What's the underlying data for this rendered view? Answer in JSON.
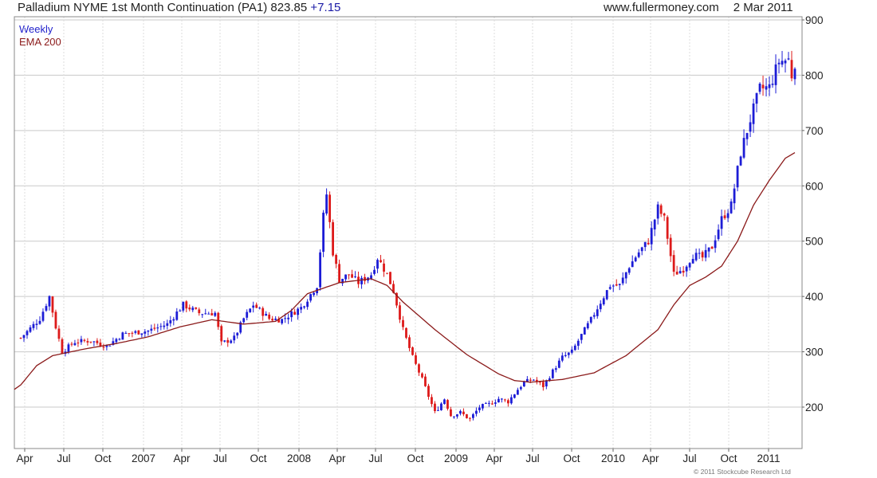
{
  "header": {
    "title": "Palladium NYME 1st Month Continuation (PA1) 823.85",
    "change": "+7.15",
    "site": "www.fullermoney.com",
    "date": "2 Mar 2011"
  },
  "legend": {
    "series1": "Weekly",
    "series2": "EMA 200"
  },
  "copyright": "© 2011 Stockcube Research Ltd",
  "colors": {
    "up": "#1c1cd6",
    "down": "#dd1a1a",
    "ema": "#8b1a1a",
    "grid": "#c9c9c9"
  },
  "chart_data": {
    "type": "candlestick",
    "title": "Palladium NYME 1st Month Continuation (PA1) 823.85 +7.15",
    "ylim": [
      130,
      900
    ],
    "y_ticks": [
      200,
      300,
      400,
      500,
      600,
      700,
      800,
      900
    ],
    "x_ticks": [
      "Apr",
      "Jul",
      "Oct",
      "2007",
      "Apr",
      "Jul",
      "Oct",
      "2008",
      "Apr",
      "Jul",
      "Oct",
      "2009",
      "Apr",
      "Jul",
      "Oct",
      "2010",
      "Apr",
      "Jul",
      "Oct",
      "2011"
    ],
    "grid": true,
    "price_knots": [
      [
        0,
        325
      ],
      [
        6,
        360
      ],
      [
        9,
        400
      ],
      [
        11,
        345
      ],
      [
        13,
        300
      ],
      [
        17,
        318
      ],
      [
        22,
        320
      ],
      [
        27,
        310
      ],
      [
        32,
        332
      ],
      [
        40,
        338
      ],
      [
        46,
        350
      ],
      [
        51,
        385
      ],
      [
        56,
        370
      ],
      [
        61,
        370
      ],
      [
        63,
        315
      ],
      [
        67,
        325
      ],
      [
        70,
        360
      ],
      [
        73,
        385
      ],
      [
        78,
        360
      ],
      [
        82,
        358
      ],
      [
        88,
        380
      ],
      [
        93,
        420
      ],
      [
        95,
        545
      ],
      [
        96,
        585
      ],
      [
        98,
        480
      ],
      [
        100,
        430
      ],
      [
        103,
        440
      ],
      [
        106,
        425
      ],
      [
        110,
        440
      ],
      [
        112,
        470
      ],
      [
        115,
        440
      ],
      [
        117,
        410
      ],
      [
        120,
        340
      ],
      [
        123,
        290
      ],
      [
        126,
        250
      ],
      [
        130,
        190
      ],
      [
        133,
        215
      ],
      [
        135,
        185
      ],
      [
        138,
        190
      ],
      [
        141,
        178
      ],
      [
        144,
        200
      ],
      [
        147,
        205
      ],
      [
        150,
        215
      ],
      [
        153,
        210
      ],
      [
        156,
        232
      ],
      [
        158,
        245
      ],
      [
        161,
        250
      ],
      [
        164,
        238
      ],
      [
        167,
        265
      ],
      [
        170,
        290
      ],
      [
        173,
        300
      ],
      [
        176,
        330
      ],
      [
        179,
        358
      ],
      [
        182,
        390
      ],
      [
        185,
        420
      ],
      [
        188,
        420
      ],
      [
        191,
        455
      ],
      [
        194,
        480
      ],
      [
        197,
        500
      ],
      [
        200,
        560
      ],
      [
        202,
        540
      ],
      [
        205,
        440
      ],
      [
        208,
        450
      ],
      [
        211,
        475
      ],
      [
        214,
        470
      ],
      [
        217,
        490
      ],
      [
        220,
        540
      ],
      [
        223,
        565
      ],
      [
        226,
        660
      ],
      [
        229,
        720
      ],
      [
        232,
        775
      ],
      [
        235,
        778
      ],
      [
        238,
        825
      ],
      [
        241,
        828
      ],
      [
        242,
        800
      ],
      [
        243,
        823.85
      ]
    ],
    "ema200_knots": [
      [
        0,
        240
      ],
      [
        5,
        275
      ],
      [
        10,
        293
      ],
      [
        20,
        305
      ],
      [
        30,
        315
      ],
      [
        40,
        327
      ],
      [
        50,
        345
      ],
      [
        60,
        358
      ],
      [
        70,
        350
      ],
      [
        80,
        355
      ],
      [
        85,
        375
      ],
      [
        90,
        405
      ],
      [
        100,
        425
      ],
      [
        110,
        432
      ],
      [
        115,
        420
      ],
      [
        120,
        390
      ],
      [
        130,
        340
      ],
      [
        140,
        295
      ],
      [
        150,
        260
      ],
      [
        155,
        248
      ],
      [
        160,
        245
      ],
      [
        170,
        250
      ],
      [
        180,
        262
      ],
      [
        190,
        293
      ],
      [
        200,
        340
      ],
      [
        205,
        385
      ],
      [
        210,
        420
      ],
      [
        215,
        435
      ],
      [
        220,
        455
      ],
      [
        225,
        500
      ],
      [
        230,
        565
      ],
      [
        235,
        610
      ],
      [
        240,
        650
      ],
      [
        243,
        660
      ]
    ],
    "candles": {
      "count": 244,
      "start": "2006-03",
      "end": "2011-03-02",
      "interval": "weekly"
    }
  }
}
